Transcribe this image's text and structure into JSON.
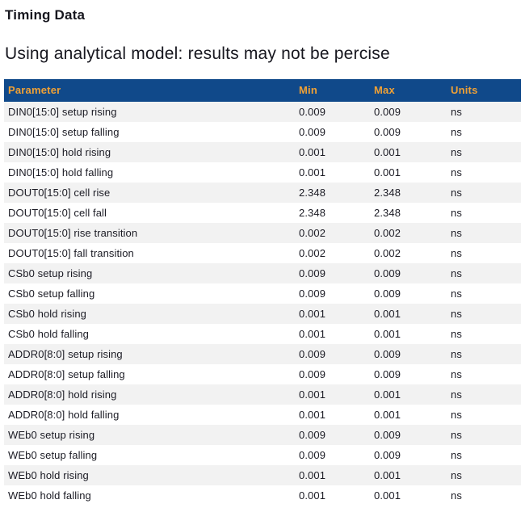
{
  "page": {
    "title": "Timing Data",
    "subtitle": "Using analytical model: results may not be percise"
  },
  "colors": {
    "header_bg": "#10498A",
    "header_text": "#F0A135",
    "row_alt_bg": "#F2F2F2",
    "body_text": "#1B1B24"
  },
  "table": {
    "columns": [
      "Parameter",
      "Min",
      "Max",
      "Units"
    ],
    "rows": [
      {
        "parameter": "DIN0[15:0] setup rising",
        "min": "0.009",
        "max": "0.009",
        "units": "ns"
      },
      {
        "parameter": "DIN0[15:0] setup falling",
        "min": "0.009",
        "max": "0.009",
        "units": "ns"
      },
      {
        "parameter": "DIN0[15:0] hold rising",
        "min": "0.001",
        "max": "0.001",
        "units": "ns"
      },
      {
        "parameter": "DIN0[15:0] hold falling",
        "min": "0.001",
        "max": "0.001",
        "units": "ns"
      },
      {
        "parameter": "DOUT0[15:0] cell rise",
        "min": "2.348",
        "max": "2.348",
        "units": "ns"
      },
      {
        "parameter": "DOUT0[15:0] cell fall",
        "min": "2.348",
        "max": "2.348",
        "units": "ns"
      },
      {
        "parameter": "DOUT0[15:0] rise transition",
        "min": "0.002",
        "max": "0.002",
        "units": "ns"
      },
      {
        "parameter": "DOUT0[15:0] fall transition",
        "min": "0.002",
        "max": "0.002",
        "units": "ns"
      },
      {
        "parameter": "CSb0 setup rising",
        "min": "0.009",
        "max": "0.009",
        "units": "ns"
      },
      {
        "parameter": "CSb0 setup falling",
        "min": "0.009",
        "max": "0.009",
        "units": "ns"
      },
      {
        "parameter": "CSb0 hold rising",
        "min": "0.001",
        "max": "0.001",
        "units": "ns"
      },
      {
        "parameter": "CSb0 hold falling",
        "min": "0.001",
        "max": "0.001",
        "units": "ns"
      },
      {
        "parameter": "ADDR0[8:0] setup rising",
        "min": "0.009",
        "max": "0.009",
        "units": "ns"
      },
      {
        "parameter": "ADDR0[8:0] setup falling",
        "min": "0.009",
        "max": "0.009",
        "units": "ns"
      },
      {
        "parameter": "ADDR0[8:0] hold rising",
        "min": "0.001",
        "max": "0.001",
        "units": "ns"
      },
      {
        "parameter": "ADDR0[8:0] hold falling",
        "min": "0.001",
        "max": "0.001",
        "units": "ns"
      },
      {
        "parameter": "WEb0 setup rising",
        "min": "0.009",
        "max": "0.009",
        "units": "ns"
      },
      {
        "parameter": "WEb0 setup falling",
        "min": "0.009",
        "max": "0.009",
        "units": "ns"
      },
      {
        "parameter": "WEb0 hold rising",
        "min": "0.001",
        "max": "0.001",
        "units": "ns"
      },
      {
        "parameter": "WEb0 hold falling",
        "min": "0.001",
        "max": "0.001",
        "units": "ns"
      }
    ]
  }
}
